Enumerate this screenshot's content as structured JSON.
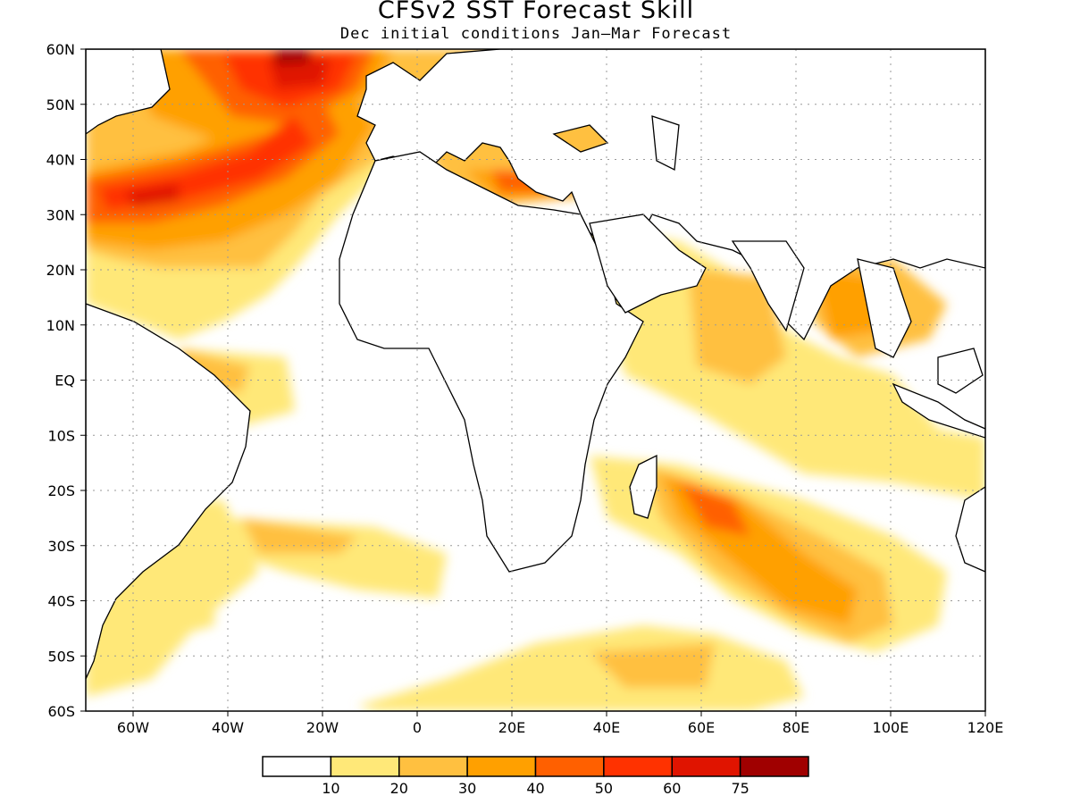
{
  "title": "CFSv2 SST Forecast Skill",
  "subtitle": "Dec initial conditions  Jan–Mar Forecast",
  "map": {
    "lat_labels": [
      "60N",
      "50N",
      "40N",
      "30N",
      "20N",
      "10N",
      "EQ",
      "10S",
      "20S",
      "30S",
      "40S",
      "50S",
      "60S"
    ],
    "lon_labels": [
      "60W",
      "40W",
      "20W",
      "0",
      "20E",
      "40E",
      "60E",
      "80E",
      "100E",
      "120E"
    ],
    "lon_range": [
      -70,
      120
    ],
    "lat_range": [
      -60,
      60
    ],
    "grid": "dotted"
  },
  "colorbar": {
    "labels": [
      "10",
      "20",
      "30",
      "40",
      "50",
      "60",
      "75"
    ],
    "colors": [
      "#ffffff",
      "#ffe878",
      "#ffc040",
      "#ffa000",
      "#ff6000",
      "#ff3200",
      "#e01400",
      "#a00000"
    ]
  }
}
